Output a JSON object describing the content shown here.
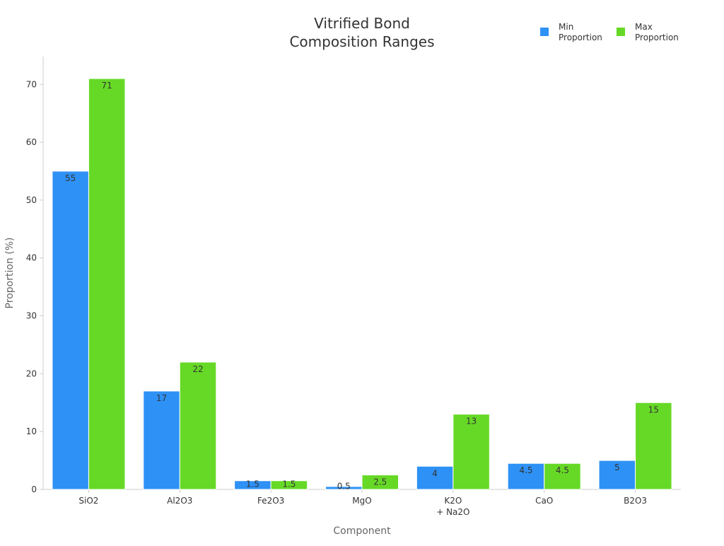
{
  "chart_data": {
    "type": "bar",
    "title_lines": [
      "Vitrified Bond",
      "Composition Ranges"
    ],
    "xlabel": "Component",
    "ylabel": "Proportion (%)",
    "categories": [
      [
        "SiO2"
      ],
      [
        "Al2O3"
      ],
      [
        "Fe2O3"
      ],
      [
        "MgO"
      ],
      [
        "K2O",
        "+ Na2O"
      ],
      [
        "CaO"
      ],
      [
        "B2O3"
      ]
    ],
    "series": [
      {
        "name_lines": [
          "Min",
          "Proportion"
        ],
        "color": "#2e91f5",
        "values": [
          55,
          17,
          1.5,
          0.5,
          4,
          4.5,
          5
        ],
        "labels": [
          "55",
          "17",
          "1.5",
          "0.5",
          "4",
          "4.5",
          "5"
        ]
      },
      {
        "name_lines": [
          "Max",
          "Proportion"
        ],
        "color": "#66d926",
        "values": [
          71,
          22,
          1.5,
          2.5,
          13,
          4.5,
          15
        ],
        "labels": [
          "71",
          "22",
          "1.5",
          "2.5",
          "13",
          "4.5",
          "15"
        ]
      }
    ],
    "ylim": [
      0,
      74.8
    ],
    "yticks": [
      0,
      10,
      20,
      30,
      40,
      50,
      60,
      70
    ],
    "legend_position": "top-right",
    "grid": false,
    "axis_color": "#cccccc",
    "label_color": "#333333"
  }
}
